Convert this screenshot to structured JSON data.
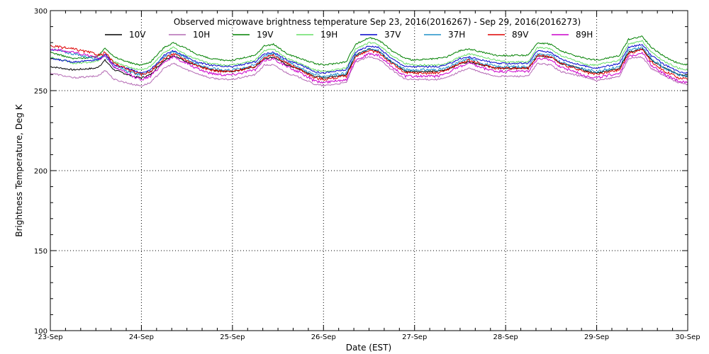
{
  "chart_data": {
    "type": "line",
    "title": "Observed microwave brightness temperature Sep 23, 2016(2016267) - Sep 29, 2016(2016273)",
    "xlabel": "Date (EST)",
    "ylabel": "Brightness Temperature, Deg K",
    "xlim": [
      0,
      7
    ],
    "ylim": [
      100,
      300
    ],
    "x_ticks": [
      0,
      1,
      2,
      3,
      4,
      5,
      6,
      7
    ],
    "x_tick_labels": [
      "23-Sep",
      "24-Sep",
      "25-Sep",
      "26-Sep",
      "27-Sep",
      "28-Sep",
      "29-Sep",
      "30-Sep"
    ],
    "y_ticks": [
      100,
      150,
      200,
      250,
      300
    ],
    "y_tick_labels": [
      "100",
      "150",
      "200",
      "250",
      "300"
    ],
    "grid": true,
    "legend_position": "top",
    "x_days": [
      0.0,
      0.25,
      0.5,
      0.55,
      0.6,
      0.7,
      0.9,
      1.0,
      1.1,
      1.25,
      1.35,
      1.5,
      1.6,
      1.75,
      1.9,
      2.0,
      2.25,
      2.35,
      2.45,
      2.6,
      2.75,
      2.9,
      3.0,
      3.25,
      3.35,
      3.5,
      3.6,
      3.75,
      3.9,
      4.0,
      4.25,
      4.35,
      4.5,
      4.6,
      4.75,
      4.9,
      5.0,
      5.25,
      5.35,
      5.5,
      5.6,
      5.75,
      5.9,
      6.0,
      6.25,
      6.35,
      6.5,
      6.6,
      6.75,
      6.9,
      7.0
    ],
    "series": [
      {
        "name": "10V",
        "color": "#000000",
        "values": [
          265,
          263,
          264,
          266,
          269,
          263,
          259,
          258,
          260,
          269,
          272,
          268,
          266,
          263,
          262,
          262,
          265,
          270,
          271,
          266,
          263,
          259,
          258,
          260,
          272,
          276,
          275,
          268,
          262,
          262,
          262,
          263,
          267,
          268,
          266,
          264,
          264,
          264,
          272,
          271,
          267,
          265,
          262,
          261,
          264,
          274,
          276,
          269,
          264,
          260,
          259
        ]
      },
      {
        "name": "10H",
        "color": "#b46ab4",
        "values": [
          261,
          258,
          259,
          260,
          263,
          257,
          254,
          253,
          255,
          264,
          267,
          263,
          261,
          258,
          257,
          257,
          260,
          266,
          266,
          261,
          258,
          254,
          253,
          255,
          268,
          271,
          270,
          263,
          257,
          257,
          257,
          258,
          262,
          264,
          261,
          259,
          259,
          259,
          267,
          266,
          262,
          260,
          258,
          256,
          259,
          270,
          271,
          264,
          259,
          255,
          254
        ]
      },
      {
        "name": "19V",
        "color": "#008000",
        "values": [
          274,
          270,
          271,
          273,
          277,
          271,
          267,
          266,
          268,
          277,
          280,
          276,
          273,
          270,
          269,
          269,
          272,
          278,
          279,
          273,
          270,
          267,
          266,
          268,
          279,
          283,
          282,
          275,
          270,
          269,
          270,
          271,
          275,
          276,
          274,
          272,
          272,
          272,
          280,
          279,
          275,
          272,
          270,
          269,
          272,
          282,
          284,
          277,
          271,
          267,
          266
        ]
      },
      {
        "name": "19H",
        "color": "#66dd66",
        "values": [
          271,
          267,
          268,
          270,
          273,
          268,
          264,
          263,
          265,
          274,
          277,
          272,
          270,
          267,
          266,
          266,
          269,
          275,
          276,
          270,
          267,
          263,
          262,
          264,
          276,
          280,
          279,
          272,
          267,
          266,
          266,
          267,
          271,
          273,
          271,
          269,
          268,
          268,
          277,
          276,
          272,
          269,
          266,
          266,
          269,
          279,
          281,
          274,
          268,
          264,
          263
        ]
      },
      {
        "name": "37V",
        "color": "#0000cc",
        "values": [
          270,
          268,
          269,
          270,
          273,
          266,
          263,
          261,
          263,
          272,
          275,
          271,
          268,
          266,
          265,
          265,
          268,
          273,
          274,
          269,
          266,
          262,
          261,
          263,
          274,
          278,
          277,
          270,
          265,
          265,
          265,
          266,
          270,
          271,
          269,
          267,
          267,
          267,
          275,
          274,
          270,
          267,
          265,
          264,
          267,
          277,
          279,
          272,
          266,
          262,
          261
        ]
      },
      {
        "name": "37H",
        "color": "#1e90c8",
        "values": [
          276,
          273,
          270,
          271,
          272,
          265,
          261,
          260,
          262,
          271,
          274,
          270,
          267,
          264,
          263,
          263,
          266,
          272,
          273,
          268,
          264,
          260,
          259,
          261,
          272,
          276,
          275,
          268,
          263,
          263,
          263,
          264,
          268,
          270,
          267,
          265,
          265,
          265,
          273,
          272,
          268,
          265,
          263,
          262,
          265,
          275,
          277,
          270,
          264,
          260,
          259
        ]
      },
      {
        "name": "89V",
        "color": "#dd0000",
        "values": [
          278,
          276,
          273,
          272,
          274,
          267,
          262,
          260,
          262,
          270,
          273,
          269,
          266,
          263,
          262,
          262,
          265,
          271,
          272,
          267,
          263,
          258,
          257,
          259,
          271,
          275,
          274,
          267,
          261,
          261,
          261,
          263,
          267,
          269,
          266,
          264,
          264,
          264,
          272,
          271,
          267,
          264,
          261,
          260,
          263,
          273,
          276,
          268,
          262,
          258,
          257
        ]
      },
      {
        "name": "89H",
        "color": "#cc00cc",
        "values": [
          276,
          274,
          271,
          270,
          272,
          265,
          259,
          257,
          259,
          268,
          271,
          267,
          264,
          261,
          260,
          260,
          263,
          269,
          270,
          265,
          261,
          256,
          255,
          257,
          269,
          273,
          272,
          265,
          259,
          259,
          259,
          261,
          265,
          267,
          264,
          262,
          262,
          262,
          270,
          269,
          265,
          262,
          259,
          258,
          261,
          271,
          274,
          266,
          260,
          256,
          255
        ]
      }
    ]
  }
}
